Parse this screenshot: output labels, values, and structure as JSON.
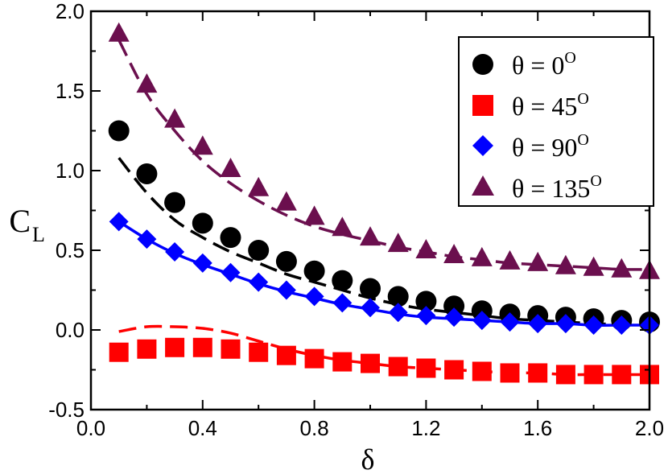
{
  "chart_data": {
    "type": "scatter",
    "xlabel": "δ",
    "ylabel": {
      "main": "C",
      "sub": "L"
    },
    "xlim": [
      0.0,
      2.0
    ],
    "ylim": [
      -0.5,
      2.0
    ],
    "xticks": [
      0.0,
      0.4,
      0.8,
      1.2,
      1.6,
      2.0
    ],
    "xtick_labels": [
      "0.0",
      "0.4",
      "0.8",
      "1.2",
      "1.6",
      "2.0"
    ],
    "yticks": [
      -0.5,
      0.0,
      0.5,
      1.0,
      1.5,
      2.0
    ],
    "ytick_labels": [
      "-0.5",
      "0.0",
      "0.5",
      "1.0",
      "1.5",
      "2.0"
    ],
    "legend_position": "top-right",
    "x": [
      0.1,
      0.2,
      0.3,
      0.4,
      0.5,
      0.6,
      0.7,
      0.8,
      0.9,
      1.0,
      1.1,
      1.2,
      1.3,
      1.4,
      1.5,
      1.6,
      1.7,
      1.8,
      1.9,
      2.0
    ],
    "series": [
      {
        "name": "θ = 0",
        "label_main": "θ = 0",
        "label_sup": "O",
        "marker": "circle",
        "color": "#000000",
        "values": [
          1.25,
          0.98,
          0.8,
          0.67,
          0.58,
          0.5,
          0.43,
          0.37,
          0.31,
          0.26,
          0.21,
          0.18,
          0.15,
          0.12,
          0.1,
          0.09,
          0.08,
          0.07,
          0.06,
          0.05
        ],
        "fit": [
          1.08,
          0.86,
          0.69,
          0.58,
          0.49,
          0.42,
          0.35,
          0.3,
          0.25,
          0.2,
          0.16,
          0.13,
          0.11,
          0.09,
          0.07,
          0.06,
          0.05,
          0.04,
          0.035,
          0.03
        ]
      },
      {
        "name": "θ = 45",
        "label_main": "θ = 45",
        "label_sup": "O",
        "marker": "square",
        "color": "#ff0000",
        "values": [
          -0.14,
          -0.12,
          -0.11,
          -0.11,
          -0.12,
          -0.14,
          -0.16,
          -0.18,
          -0.2,
          -0.21,
          -0.23,
          -0.24,
          -0.25,
          -0.26,
          -0.27,
          -0.27,
          -0.28,
          -0.28,
          -0.28,
          -0.28
        ],
        "fit": [
          -0.01,
          0.02,
          0.02,
          0.01,
          -0.02,
          -0.07,
          -0.12,
          -0.16,
          -0.19,
          -0.21,
          -0.23,
          -0.24,
          -0.25,
          -0.26,
          -0.27,
          -0.27,
          -0.28,
          -0.28,
          -0.28,
          -0.28
        ]
      },
      {
        "name": "θ = 90",
        "label_main": "θ = 90",
        "label_sup": "O",
        "marker": "diamond",
        "color": "#0000ff",
        "values": [
          0.68,
          0.57,
          0.49,
          0.42,
          0.36,
          0.3,
          0.25,
          0.21,
          0.17,
          0.14,
          0.11,
          0.09,
          0.08,
          0.06,
          0.05,
          0.04,
          0.04,
          0.03,
          0.03,
          0.03
        ],
        "fit": [
          0.68,
          0.57,
          0.48,
          0.41,
          0.35,
          0.29,
          0.24,
          0.2,
          0.16,
          0.13,
          0.1,
          0.08,
          0.07,
          0.06,
          0.05,
          0.04,
          0.04,
          0.03,
          0.03,
          0.03
        ]
      },
      {
        "name": "θ = 135",
        "label_main": "θ = 135",
        "label_sup": "O",
        "marker": "triangle",
        "color": "#6b0f4e",
        "values": [
          1.86,
          1.54,
          1.32,
          1.15,
          1.01,
          0.89,
          0.8,
          0.71,
          0.64,
          0.58,
          0.54,
          0.5,
          0.47,
          0.45,
          0.43,
          0.42,
          0.4,
          0.39,
          0.38,
          0.37
        ],
        "fit": [
          1.82,
          1.48,
          1.25,
          1.06,
          0.92,
          0.81,
          0.72,
          0.65,
          0.6,
          0.56,
          0.52,
          0.49,
          0.46,
          0.44,
          0.42,
          0.41,
          0.4,
          0.39,
          0.38,
          0.38
        ]
      }
    ]
  }
}
